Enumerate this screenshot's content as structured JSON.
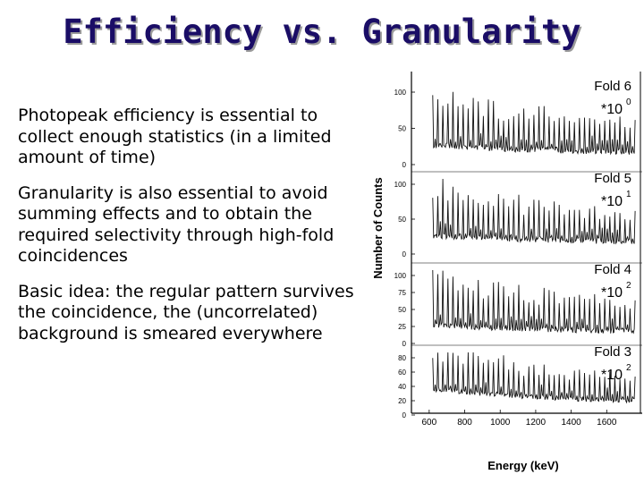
{
  "slide": {
    "title": "Efficiency vs. Granularity",
    "bullets": [
      "Photopeak efficiency is essential to collect enough statistics (in a limited amount of time)",
      "Granularity is also essential to avoid summing effects and to obtain the required selectivity through high-fold coincidences",
      "Basic idea: the regular pattern survives the coincidence, the (uncorrelated) background is smeared everywhere"
    ]
  },
  "chart_data": {
    "type": "line",
    "xlabel": "Energy (keV)",
    "ylabel": "Number of Counts",
    "xlim": [
      500,
      1800
    ],
    "x_ticks": [
      "600",
      "800",
      "1000",
      "1200",
      "1400",
      "1600"
    ],
    "panels": [
      {
        "label": "Fold 6",
        "scale_base": "*10",
        "scale_exp": "0",
        "ticks": [
          "100",
          "50",
          "0"
        ],
        "ylim": [
          0,
          110
        ]
      },
      {
        "label": "Fold 5",
        "scale_base": "*10",
        "scale_exp": "1",
        "ticks": [
          "100",
          "50",
          "0"
        ],
        "ylim": [
          0,
          110
        ]
      },
      {
        "label": "Fold 4",
        "scale_base": "*10",
        "scale_exp": "2",
        "ticks": [
          "100",
          "75",
          "50",
          "25",
          "0"
        ],
        "ylim": [
          0,
          110
        ]
      },
      {
        "label": "Fold 3",
        "scale_base": "*10",
        "scale_exp": "2",
        "ticks": [
          "80",
          "60",
          "40",
          "20",
          "0"
        ],
        "ylim": [
          0,
          90
        ]
      }
    ],
    "colors": {
      "line": "#111111",
      "title": "#1a0d66"
    }
  }
}
